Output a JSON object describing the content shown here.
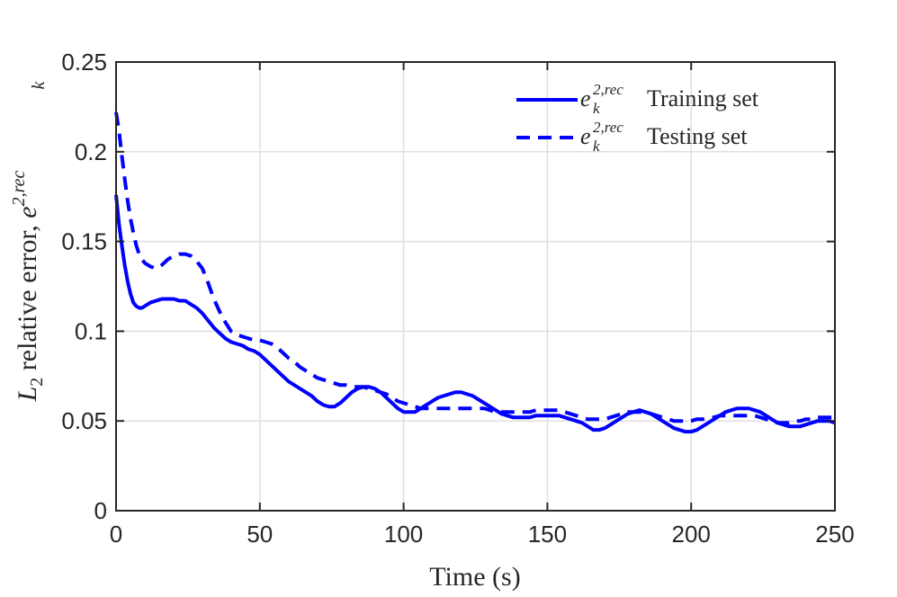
{
  "chart_data": {
    "type": "line",
    "xlabel": "Time (s)",
    "ylabel": {
      "prefix": "L",
      "prefix_sub": "2",
      "text": " relative error, ",
      "symbol": "e",
      "symbol_sup": "2,rec",
      "symbol_sub": "k"
    },
    "xlim": [
      0,
      250
    ],
    "ylim": [
      0,
      0.25
    ],
    "xticks": [
      0,
      50,
      100,
      150,
      200,
      250
    ],
    "xtick_labels": [
      "0",
      "50",
      "100",
      "150",
      "200",
      "250"
    ],
    "yticks": [
      0,
      0.05,
      0.1,
      0.15,
      0.2,
      0.25
    ],
    "ytick_labels": [
      "0",
      "0.05",
      "0.1",
      "0.15",
      "0.2",
      "0.25"
    ],
    "grid": true,
    "legend_position": "top-right",
    "colors": {
      "series": "#0000ff",
      "grid": "#dfdfdf",
      "axis": "#262626"
    },
    "series": [
      {
        "name": "Training set",
        "legend_symbol": "e",
        "legend_sup": "2,rec",
        "legend_sub": "k",
        "style": "solid",
        "x": [
          0,
          1,
          2,
          3,
          4,
          5,
          6,
          7,
          8,
          9,
          10,
          12,
          14,
          16,
          18,
          20,
          22,
          24,
          26,
          28,
          30,
          32,
          34,
          36,
          38,
          40,
          42,
          44,
          46,
          48,
          50,
          52,
          54,
          56,
          58,
          60,
          62,
          64,
          66,
          68,
          70,
          72,
          74,
          76,
          78,
          80,
          82,
          84,
          86,
          88,
          90,
          92,
          94,
          96,
          98,
          100,
          102,
          104,
          106,
          108,
          110,
          112,
          114,
          116,
          118,
          120,
          122,
          124,
          126,
          128,
          130,
          132,
          134,
          136,
          138,
          140,
          142,
          144,
          146,
          148,
          150,
          152,
          154,
          156,
          158,
          160,
          162,
          164,
          166,
          168,
          170,
          172,
          174,
          176,
          178,
          180,
          182,
          184,
          186,
          188,
          190,
          192,
          194,
          196,
          198,
          200,
          202,
          204,
          206,
          208,
          210,
          212,
          214,
          216,
          218,
          220,
          222,
          224,
          226,
          228,
          230,
          232,
          234,
          236,
          238,
          240,
          242,
          244,
          246,
          248,
          250
        ],
        "y": [
          0.176,
          0.16,
          0.148,
          0.137,
          0.128,
          0.121,
          0.116,
          0.114,
          0.113,
          0.113,
          0.114,
          0.116,
          0.117,
          0.118,
          0.118,
          0.118,
          0.117,
          0.117,
          0.115,
          0.113,
          0.11,
          0.106,
          0.102,
          0.099,
          0.096,
          0.094,
          0.093,
          0.092,
          0.09,
          0.089,
          0.087,
          0.084,
          0.081,
          0.078,
          0.075,
          0.072,
          0.07,
          0.068,
          0.066,
          0.064,
          0.061,
          0.059,
          0.058,
          0.058,
          0.06,
          0.063,
          0.066,
          0.068,
          0.069,
          0.069,
          0.068,
          0.066,
          0.063,
          0.06,
          0.057,
          0.055,
          0.055,
          0.055,
          0.057,
          0.059,
          0.061,
          0.063,
          0.064,
          0.065,
          0.066,
          0.066,
          0.065,
          0.064,
          0.062,
          0.06,
          0.058,
          0.056,
          0.054,
          0.053,
          0.052,
          0.052,
          0.052,
          0.052,
          0.053,
          0.053,
          0.053,
          0.053,
          0.053,
          0.052,
          0.051,
          0.05,
          0.049,
          0.047,
          0.045,
          0.045,
          0.046,
          0.048,
          0.05,
          0.052,
          0.054,
          0.055,
          0.056,
          0.055,
          0.054,
          0.052,
          0.05,
          0.048,
          0.046,
          0.045,
          0.044,
          0.044,
          0.045,
          0.047,
          0.049,
          0.051,
          0.053,
          0.055,
          0.056,
          0.057,
          0.057,
          0.057,
          0.056,
          0.055,
          0.053,
          0.051,
          0.049,
          0.048,
          0.047,
          0.047,
          0.047,
          0.048,
          0.049,
          0.05,
          0.05,
          0.05,
          0.049
        ]
      },
      {
        "name": "Testing set",
        "legend_symbol": "e",
        "legend_sup": "2,rec",
        "legend_sub": "k",
        "style": "dashed",
        "x": [
          0,
          1,
          2,
          3,
          4,
          5,
          6,
          7,
          8,
          9,
          10,
          12,
          14,
          16,
          18,
          20,
          22,
          24,
          26,
          28,
          30,
          32,
          34,
          36,
          38,
          40,
          42,
          44,
          46,
          48,
          50,
          52,
          54,
          56,
          58,
          60,
          62,
          64,
          66,
          68,
          70,
          72,
          74,
          76,
          78,
          80,
          82,
          84,
          86,
          88,
          90,
          92,
          94,
          96,
          98,
          100,
          102,
          104,
          106,
          108,
          110,
          112,
          114,
          116,
          118,
          120,
          122,
          124,
          126,
          128,
          130,
          132,
          134,
          136,
          138,
          140,
          142,
          144,
          146,
          148,
          150,
          152,
          154,
          156,
          158,
          160,
          162,
          164,
          166,
          168,
          170,
          172,
          174,
          176,
          178,
          180,
          182,
          184,
          186,
          188,
          190,
          192,
          194,
          196,
          198,
          200,
          202,
          204,
          206,
          208,
          210,
          212,
          214,
          216,
          218,
          220,
          222,
          224,
          226,
          228,
          230,
          232,
          234,
          236,
          238,
          240,
          242,
          244,
          246,
          248,
          250
        ],
        "y": [
          0.222,
          0.212,
          0.198,
          0.185,
          0.173,
          0.163,
          0.155,
          0.148,
          0.143,
          0.14,
          0.138,
          0.136,
          0.135,
          0.137,
          0.14,
          0.142,
          0.143,
          0.143,
          0.142,
          0.139,
          0.135,
          0.127,
          0.118,
          0.111,
          0.105,
          0.1,
          0.098,
          0.097,
          0.096,
          0.095,
          0.095,
          0.094,
          0.093,
          0.091,
          0.088,
          0.085,
          0.083,
          0.08,
          0.078,
          0.076,
          0.074,
          0.073,
          0.072,
          0.071,
          0.07,
          0.07,
          0.069,
          0.069,
          0.069,
          0.068,
          0.067,
          0.066,
          0.065,
          0.063,
          0.061,
          0.06,
          0.059,
          0.058,
          0.057,
          0.057,
          0.057,
          0.057,
          0.057,
          0.057,
          0.057,
          0.057,
          0.057,
          0.057,
          0.057,
          0.057,
          0.056,
          0.055,
          0.055,
          0.055,
          0.055,
          0.055,
          0.055,
          0.055,
          0.056,
          0.056,
          0.056,
          0.056,
          0.056,
          0.055,
          0.054,
          0.053,
          0.052,
          0.051,
          0.051,
          0.051,
          0.051,
          0.052,
          0.053,
          0.054,
          0.055,
          0.055,
          0.055,
          0.055,
          0.054,
          0.053,
          0.052,
          0.051,
          0.05,
          0.05,
          0.05,
          0.05,
          0.051,
          0.051,
          0.052,
          0.052,
          0.053,
          0.053,
          0.053,
          0.053,
          0.053,
          0.053,
          0.053,
          0.052,
          0.051,
          0.05,
          0.049,
          0.049,
          0.049,
          0.05,
          0.05,
          0.051,
          0.051,
          0.052,
          0.052,
          0.052,
          0.052
        ]
      }
    ]
  }
}
